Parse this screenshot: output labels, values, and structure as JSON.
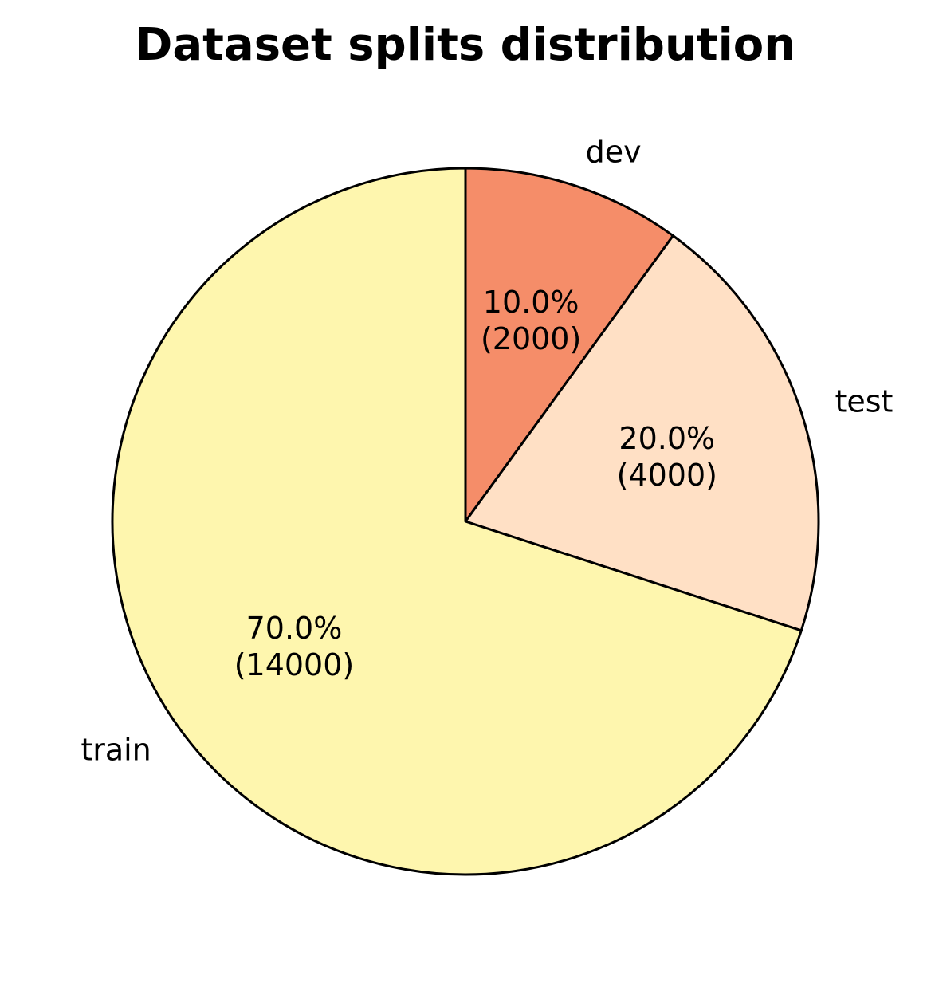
{
  "chart_data": {
    "type": "pie",
    "title": "Dataset splits distribution",
    "categories": [
      "dev",
      "test",
      "train"
    ],
    "values": [
      2000,
      4000,
      14000
    ],
    "percentages": [
      "10.0%",
      "20.0%",
      "70.0%"
    ],
    "counts_text": [
      "(2000)",
      "(4000)",
      "(14000)"
    ],
    "colors": [
      "#f58d69",
      "#ffe0c5",
      "#fef6ae"
    ],
    "edge_color": "#000000",
    "start_angle_deg": 90,
    "direction": "clockwise",
    "legend": "none"
  }
}
